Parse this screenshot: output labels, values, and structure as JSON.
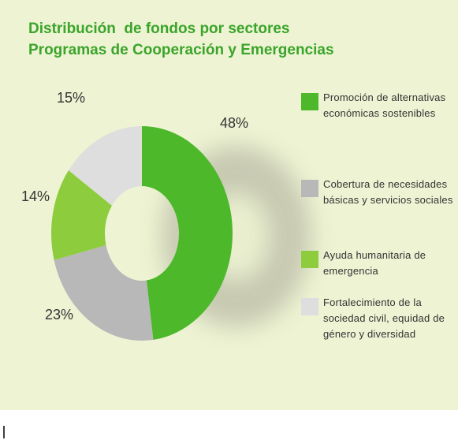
{
  "chart_data": {
    "type": "donut",
    "title": "Distribución  de fondos por sectores",
    "subtitle": "Programas de Cooperación y Emergencias",
    "categories": [
      "Promoción de alternativas económicas sostenibles",
      "Cobertura de necesidades básicas y servicios sociales",
      "Ayuda humanitaria de emergencia",
      "Fortalecimiento de la sociedad civil, equidad de género y diversidad"
    ],
    "values": [
      48,
      23,
      14,
      15
    ],
    "value_labels": [
      "48%",
      "23%",
      "14%",
      "15%"
    ],
    "colors": [
      "#4cb82a",
      "#b8b8b8",
      "#8dcc3c",
      "#dedede"
    ]
  }
}
